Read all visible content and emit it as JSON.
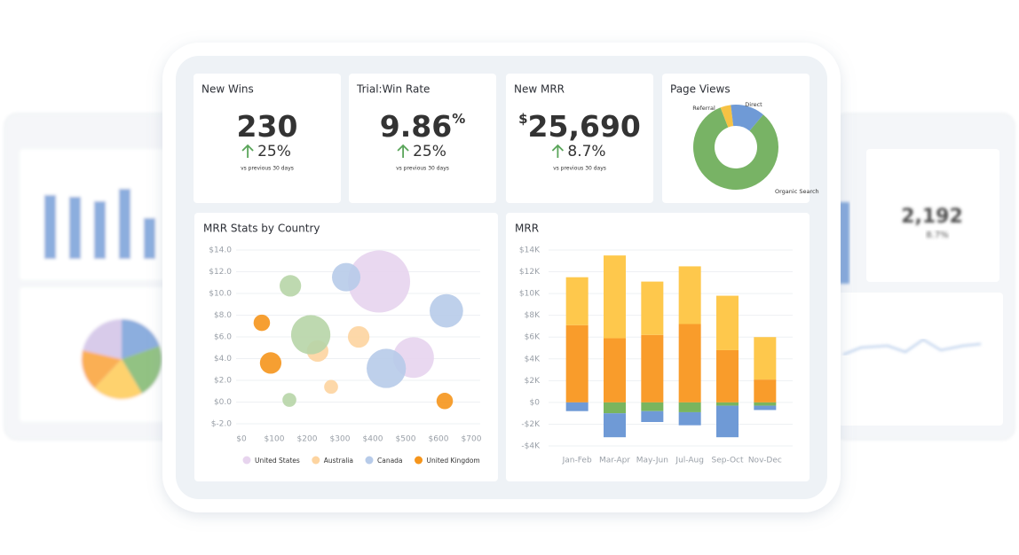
{
  "cards": [
    {
      "title": "New Wins",
      "value": "230",
      "change": "25%",
      "note": "vs previous 30 days"
    },
    {
      "title": "Trial:Win Rate",
      "value": "9.86",
      "unit": "%",
      "change": "25%",
      "note": "vs previous 30 days"
    },
    {
      "title": "New MRR",
      "prefix": "$",
      "value": "25,690",
      "change": "8.7%",
      "note": "vs previous 30 days"
    }
  ],
  "background": {
    "kpi_value": "2,192",
    "kpi_change": "8.7%"
  },
  "chart_data": [
    {
      "type": "pie",
      "title": "Page Views",
      "donut": true,
      "categories": [
        "Organic Search",
        "Referral",
        "Direct"
      ],
      "values": [
        83,
        4,
        13
      ],
      "colors": [
        "#78b365",
        "#f6c244",
        "#6f9ad6"
      ]
    },
    {
      "type": "scatter",
      "title": "MRR Stats by Country",
      "grid": true,
      "xlim": [
        0,
        700
      ],
      "xticks": [
        {
          "value": 0,
          "label": "$0"
        },
        {
          "value": 100,
          "label": "$100"
        },
        {
          "value": 200,
          "label": "$200"
        },
        {
          "value": 300,
          "label": "$300"
        },
        {
          "value": 400,
          "label": "$400"
        },
        {
          "value": 500,
          "label": "$500"
        },
        {
          "value": 600,
          "label": "$600"
        },
        {
          "value": 700,
          "label": "$700"
        }
      ],
      "ylim": [
        -2,
        14
      ],
      "yticks": [
        {
          "value": 14,
          "label": "$14.0"
        },
        {
          "value": 12,
          "label": "$12.0"
        },
        {
          "value": 10,
          "label": "$10.0"
        },
        {
          "value": 8,
          "label": "$8.0"
        },
        {
          "value": 6,
          "label": "$6.0"
        },
        {
          "value": 4,
          "label": "$4.0"
        },
        {
          "value": 2,
          "label": "$2.0"
        },
        {
          "value": 0,
          "label": "$0.0"
        },
        {
          "value": -2,
          "label": "$-2.0"
        }
      ],
      "series": [
        {
          "name": "United States",
          "color": "#e7d4ee",
          "x": [
            419,
            524
          ],
          "values": [
            11.1,
            4.1
          ],
          "sizes": [
            100,
            43
          ]
        },
        {
          "name": "Australia",
          "color": "#fdd4a0",
          "x": [
            357,
            232,
            273
          ],
          "values": [
            6.0,
            4.7,
            1.4
          ],
          "sizes": [
            12,
            12,
            5
          ]
        },
        {
          "name": "Canada",
          "color": "#b7cbe9",
          "x": [
            319,
            624,
            441
          ],
          "values": [
            11.5,
            8.4,
            3.1
          ],
          "sizes": [
            21,
            29,
            40
          ]
        },
        {
          "name": "United Kingdom",
          "color": "#f5951c",
          "x": [
            62,
            89,
            619
          ],
          "values": [
            7.3,
            3.6,
            0.1
          ],
          "sizes": [
            7,
            12,
            7
          ]
        },
        {
          "color": "#b7d5a7",
          "x": [
            149,
            211,
            146
          ],
          "values": [
            10.7,
            6.2,
            0.2
          ],
          "sizes": [
            12,
            40,
            5
          ]
        }
      ]
    },
    {
      "type": "bar",
      "title": "MRR",
      "stacked": true,
      "grid": true,
      "categories": [
        "Jan-Feb",
        "Mar-Apr",
        "May-Jun",
        "Jul-Aug",
        "Sep-Oct",
        "Nov-Dec"
      ],
      "ylim": [
        -4,
        14
      ],
      "yticks": [
        {
          "value": 14,
          "label": "$14K"
        },
        {
          "value": 12,
          "label": "$12K"
        },
        {
          "value": 10,
          "label": "$10K"
        },
        {
          "value": 8,
          "label": "$8K"
        },
        {
          "value": 6,
          "label": "$6K"
        },
        {
          "value": 4,
          "label": "$4K"
        },
        {
          "value": 2,
          "label": "$2K"
        },
        {
          "value": 0,
          "label": "$0"
        },
        {
          "value": -2,
          "label": "-$2K"
        },
        {
          "value": -4,
          "label": "-$4K"
        }
      ],
      "series": [
        {
          "color": "#f99c2b",
          "values": [
            7.1,
            5.9,
            6.2,
            7.2,
            4.8,
            2.1
          ]
        },
        {
          "color": "#fec84c",
          "values": [
            4.4,
            7.6,
            4.9,
            5.3,
            5.0,
            3.9
          ]
        },
        {
          "color": "#79b55e",
          "values": [
            0,
            -1.0,
            -0.8,
            -0.9,
            -0.3,
            -0.3
          ]
        },
        {
          "color": "#6f9ad6",
          "values": [
            -0.8,
            -2.2,
            -1.0,
            -1.2,
            -2.9,
            -0.4
          ]
        }
      ]
    }
  ]
}
